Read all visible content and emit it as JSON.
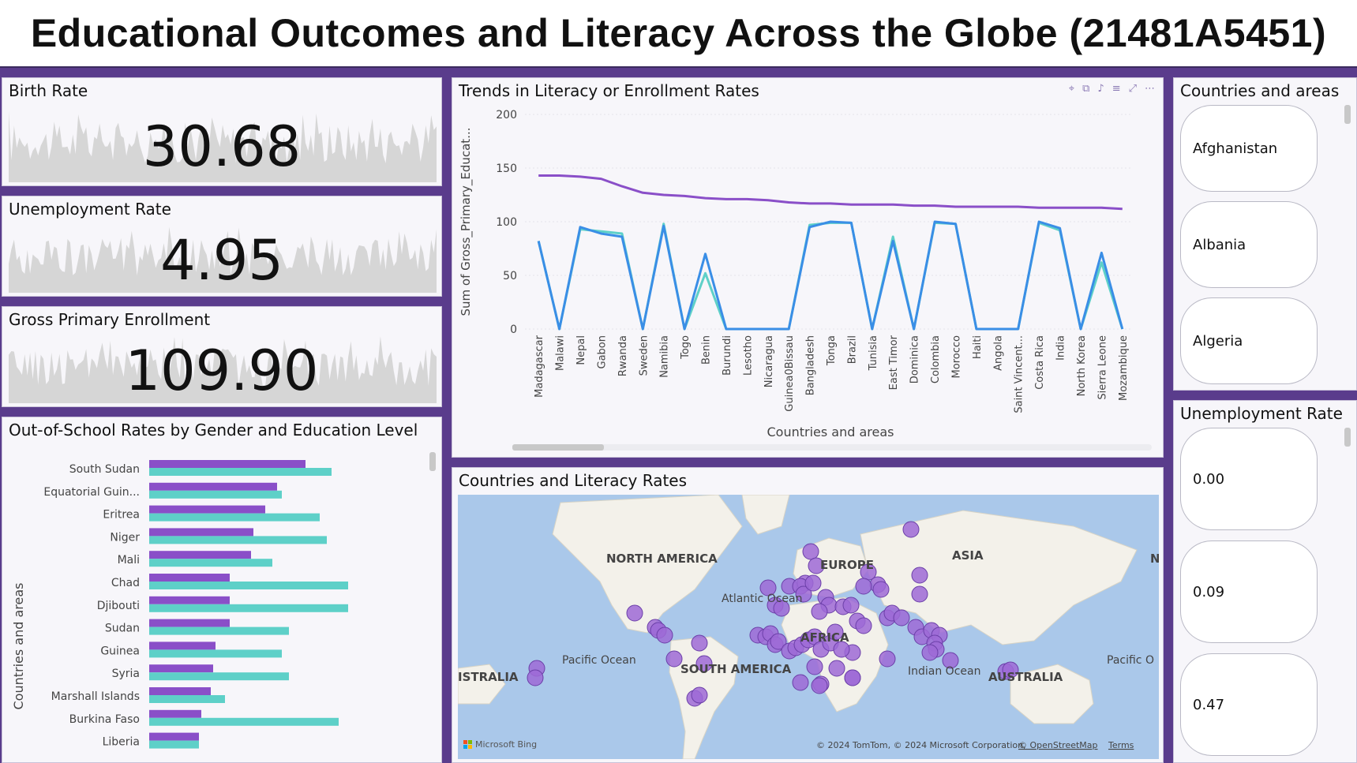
{
  "title": "Educational Outcomes and Literacy Across the Globe (21481A5451)",
  "kpis": [
    {
      "title": "Birth Rate",
      "value": "30.68"
    },
    {
      "title": "Unemployment Rate",
      "value": "4.95"
    },
    {
      "title": "Gross Primary Enrollment",
      "value": "109.90"
    }
  ],
  "bar_chart": {
    "title": "Out-of-School Rates by Gender and Education Level",
    "ylabel": "Countries and areas",
    "colors": {
      "series1": "#8a4fc8",
      "series2": "#5ed0c8"
    }
  },
  "line_chart": {
    "title": "Trends in Literacy or Enrollment Rates",
    "xlabel": "Countries and areas",
    "ylabel": "Sum of Gross_Primary_Educat...",
    "yticks": [
      "0",
      "50",
      "100",
      "150",
      "200"
    ],
    "toolbar_icons": [
      "pin-icon",
      "copy-icon",
      "bell-icon",
      "filter-icon",
      "expand-icon",
      "more-icon"
    ]
  },
  "map": {
    "title": "Countries and Literacy Rates",
    "labels": {
      "north_america": "NORTH AMERICA",
      "europe": "EUROPE",
      "asia": "ASIA",
      "atlantic": "Atlantic\nOcean",
      "pacific_left": "Pacific Ocean",
      "south_america": "SOUTH AMERICA",
      "africa": "AFRICA",
      "indian": "Indian\nOcean",
      "australia_left": "ISTRALIA",
      "australia": "AUSTRALIA",
      "pacific_right": "Pacific O",
      "n_edge": "N"
    },
    "credit_brand": "Microsoft Bing",
    "copyright": "© 2024 TomTom, © 2024 Microsoft Corporation,",
    "osm": "© OpenStreetMap",
    "terms": "Terms"
  },
  "slicer_countries": {
    "title": "Countries and areas",
    "items": [
      "Afghanistan",
      "Albania",
      "Algeria"
    ]
  },
  "slicer_unemployment": {
    "title": "Unemployment Rate",
    "items": [
      "0.00",
      "0.09",
      "0.47"
    ]
  },
  "chart_data": [
    {
      "type": "bar",
      "title": "Out-of-School Rates by Gender and Education Level",
      "ylabel": "Countries and areas",
      "categories": [
        "South Sudan",
        "Equatorial Guin...",
        "Eritrea",
        "Niger",
        "Mali",
        "Chad",
        "Djibouti",
        "Sudan",
        "Guinea",
        "Syria",
        "Marshall Islands",
        "Burkina Faso",
        "Liberia"
      ],
      "series": [
        {
          "values": [
            66,
            54,
            49,
            44,
            43,
            34,
            34,
            34,
            28,
            27,
            26,
            22,
            21
          ]
        },
        {
          "values": [
            77,
            56,
            72,
            75,
            52,
            84,
            84,
            59,
            56,
            59,
            32,
            80,
            21
          ]
        }
      ],
      "xlim": [
        0,
        100
      ]
    },
    {
      "type": "line",
      "title": "Trends in Literacy or Enrollment Rates",
      "xlabel": "Countries and areas",
      "ylabel": "Sum of Gross_Primary_Educat...",
      "ylim": [
        0,
        200
      ],
      "categories": [
        "Madagascar",
        "Malawi",
        "Nepal",
        "Gabon",
        "Rwanda",
        "Sweden",
        "Namibia",
        "Togo",
        "Benin",
        "Burundi",
        "Lesotho",
        "Nicaragua",
        "Guinea0Bissau",
        "Bangladesh",
        "Tonga",
        "Brazil",
        "Tunisia",
        "East Timor",
        "Dominica",
        "Colombia",
        "Morocco",
        "Haiti",
        "Angola",
        "Saint Vincent...",
        "Costa Rica",
        "India",
        "North Korea",
        "Sierra Leone",
        "Mozambique"
      ],
      "series": [
        {
          "color": "#8a4fc8",
          "values": [
            143,
            143,
            142,
            140,
            133,
            127,
            125,
            124,
            122,
            121,
            121,
            120,
            118,
            117,
            117,
            116,
            116,
            116,
            115,
            115,
            114,
            114,
            114,
            114,
            113,
            113,
            113,
            113,
            112
          ]
        },
        {
          "color": "#5ed0c8",
          "values": [
            82,
            0,
            93,
            91,
            89,
            0,
            98,
            0,
            52,
            0,
            0,
            0,
            0,
            97,
            99,
            99,
            0,
            86,
            0,
            99,
            98,
            0,
            0,
            0,
            99,
            92,
            0,
            62,
            0
          ]
        },
        {
          "color": "#3a8ee6",
          "values": [
            82,
            0,
            95,
            89,
            86,
            0,
            96,
            0,
            70,
            0,
            0,
            0,
            0,
            95,
            100,
            99,
            0,
            82,
            0,
            100,
            98,
            0,
            0,
            0,
            100,
            94,
            0,
            71,
            0
          ]
        }
      ]
    }
  ]
}
